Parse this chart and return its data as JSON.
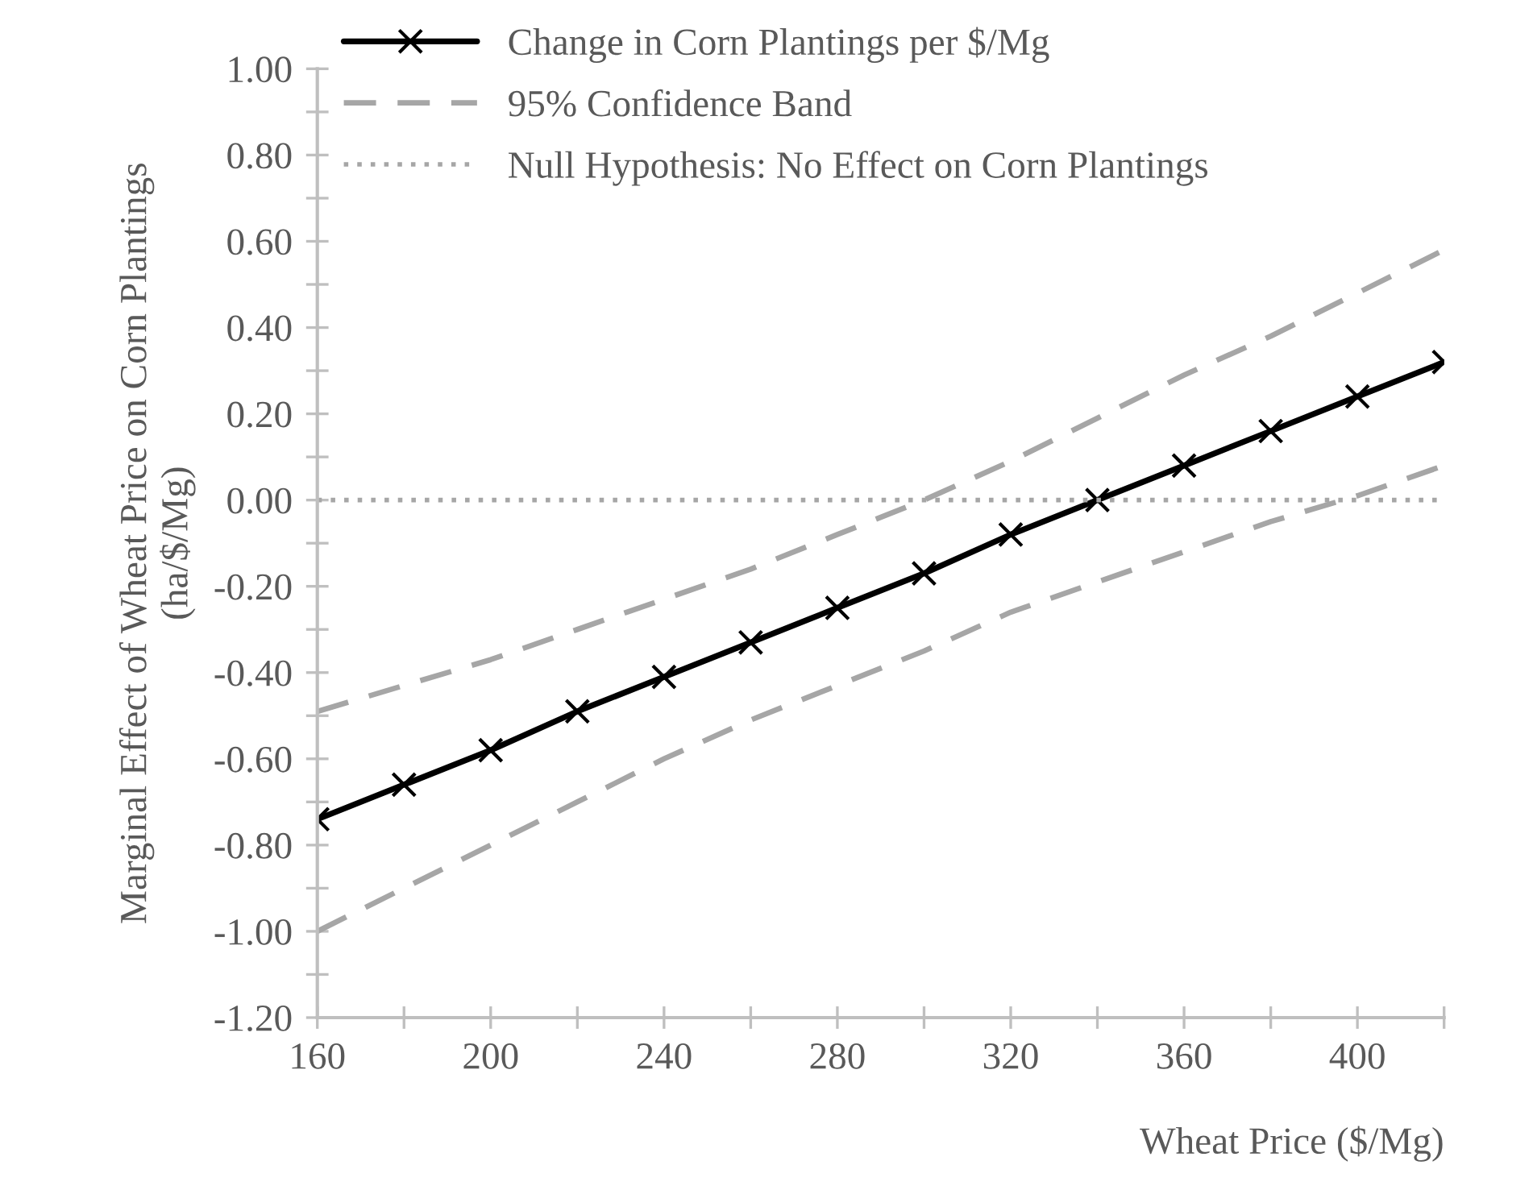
{
  "chart_data": {
    "type": "line",
    "xlabel": "Wheat Price ($/Mg)",
    "ylabel": "Marginal Effect of Wheat Price on Corn Plantings\n(ha/$/Mg)",
    "x": [
      160,
      180,
      200,
      220,
      240,
      260,
      280,
      300,
      320,
      340,
      360,
      380,
      400,
      420
    ],
    "series": [
      {
        "name": "Change in Corn Plantings per $/Mg",
        "color": "#000000",
        "marker": "cross",
        "line_style": "solid",
        "values": [
          -0.74,
          -0.66,
          -0.58,
          -0.49,
          -0.41,
          -0.33,
          -0.25,
          -0.17,
          -0.08,
          0.0,
          0.08,
          0.16,
          0.24,
          0.32
        ]
      },
      {
        "name": "95% Confidence Band",
        "color": "#a6a6a6",
        "marker": "none",
        "line_style": "dashed",
        "values": [
          -0.49,
          -0.43,
          -0.37,
          -0.3,
          -0.23,
          -0.16,
          -0.08,
          0.0,
          0.09,
          0.19,
          0.29,
          0.38,
          0.48,
          0.58
        ]
      },
      {
        "color": "#a6a6a6",
        "marker": "none",
        "line_style": "dashed",
        "values": [
          -1.0,
          -0.9,
          -0.8,
          -0.7,
          -0.6,
          -0.51,
          -0.43,
          -0.35,
          -0.26,
          -0.19,
          -0.12,
          -0.05,
          0.01,
          0.08
        ]
      }
    ],
    "ref_lines": [
      {
        "axis": "y",
        "value": 0,
        "label": "Null Hypothesis: No Effect on Corn Plantings",
        "color": "#a6a6a6",
        "line_style": "dotted"
      }
    ],
    "xlim": [
      160,
      420
    ],
    "xticks": [
      160,
      {
        "value": 180,
        "label": null
      },
      200,
      {
        "value": 220,
        "label": null
      },
      240,
      {
        "value": 260,
        "label": null
      },
      280,
      {
        "value": 300,
        "label": null
      },
      320,
      {
        "value": 340,
        "label": null
      },
      360,
      {
        "value": 380,
        "label": null
      },
      400,
      {
        "value": 420,
        "label": null
      }
    ],
    "ylim": [
      -1.2,
      1.0
    ],
    "yticks": [
      {
        "value": -1.2,
        "label": "-1.20"
      },
      {
        "value": -1.1,
        "label": null
      },
      {
        "value": -1.0,
        "label": "-1.00"
      },
      {
        "value": -0.9,
        "label": null
      },
      {
        "value": -0.8,
        "label": "-0.80"
      },
      {
        "value": -0.7,
        "label": null
      },
      {
        "value": -0.6,
        "label": "-0.60"
      },
      {
        "value": -0.5,
        "label": null
      },
      {
        "value": -0.4,
        "label": "-0.40"
      },
      {
        "value": -0.3,
        "label": null
      },
      {
        "value": -0.2,
        "label": "-0.20"
      },
      {
        "value": -0.1,
        "label": null
      },
      {
        "value": 0.0,
        "label": "0.00"
      },
      {
        "value": 0.1,
        "label": null
      },
      {
        "value": 0.2,
        "label": "0.20"
      },
      {
        "value": 0.3,
        "label": null
      },
      {
        "value": 0.4,
        "label": "0.40"
      },
      {
        "value": 0.5,
        "label": null
      },
      {
        "value": 0.6,
        "label": "0.60"
      },
      {
        "value": 0.7,
        "label": null
      },
      {
        "value": 0.8,
        "label": "0.80"
      },
      {
        "value": 0.9,
        "label": null
      },
      {
        "value": 1.0,
        "label": "1.00"
      }
    ],
    "grid": false,
    "legend": "top left"
  }
}
